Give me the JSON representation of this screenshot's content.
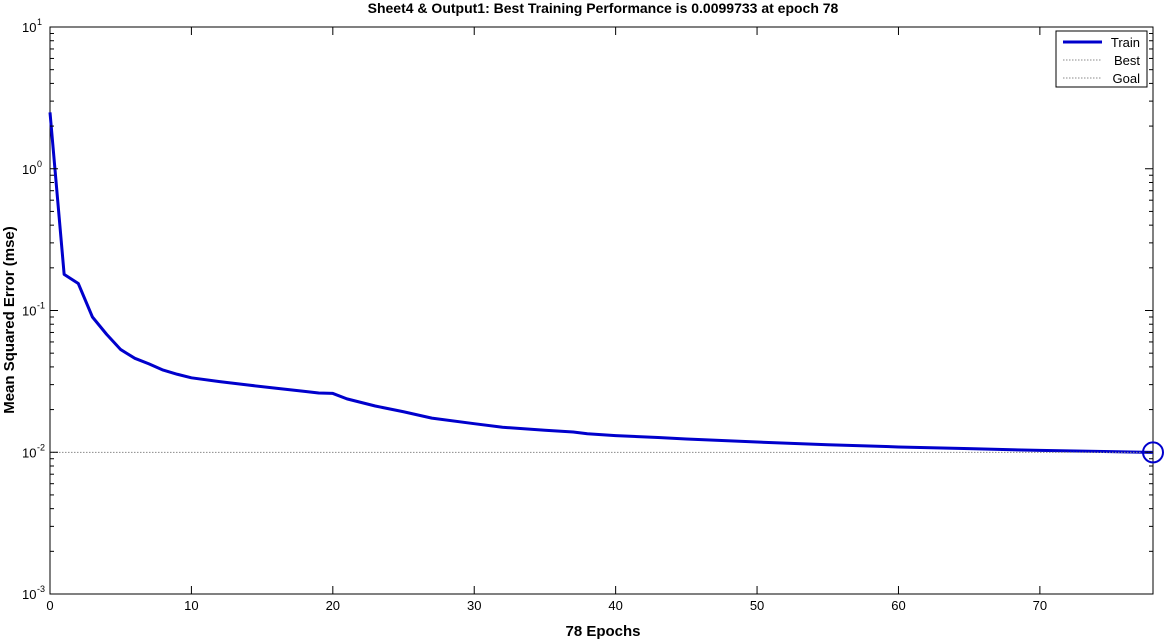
{
  "colors": {
    "train": "#0000cc",
    "best": "#8a8a8a",
    "goal": "#8a8a8a",
    "axis": "#000000"
  },
  "chart_data": {
    "type": "line",
    "title": "Sheet4 & Output1: Best Training Performance is 0.0099733 at epoch 78",
    "xlabel": "78 Epochs",
    "ylabel": "Mean Squared Error  (mse)",
    "xlim": [
      0,
      78
    ],
    "ylim": [
      0.001,
      10
    ],
    "y_scale": "log",
    "grid": false,
    "legend_position": "top-right",
    "x_ticks": [
      0,
      10,
      20,
      30,
      40,
      50,
      60,
      70
    ],
    "x_tick_labels": [
      "0",
      "10",
      "20",
      "30",
      "40",
      "50",
      "60",
      "70"
    ],
    "y_ticks": [
      {
        "value": 10,
        "base": "10",
        "exp": "1"
      },
      {
        "value": 1,
        "base": "10",
        "exp": "0"
      },
      {
        "value": 0.1,
        "base": "10",
        "exp": "-1"
      },
      {
        "value": 0.01,
        "base": "10",
        "exp": "-2"
      },
      {
        "value": 0.001,
        "base": "10",
        "exp": "-3"
      }
    ],
    "series": [
      {
        "name": "Train",
        "style": "line",
        "x": [
          0,
          1,
          2,
          3,
          4,
          5,
          6,
          7,
          8,
          9,
          10,
          12,
          14,
          16,
          18,
          19,
          20,
          21,
          23,
          25,
          27,
          30,
          32,
          35,
          37,
          38,
          40,
          43,
          45,
          50,
          55,
          60,
          65,
          70,
          75,
          78
        ],
        "y": [
          2.5,
          0.18,
          0.155,
          0.09,
          0.068,
          0.053,
          0.046,
          0.042,
          0.038,
          0.0355,
          0.0335,
          0.0315,
          0.0298,
          0.0283,
          0.0269,
          0.0262,
          0.026,
          0.0238,
          0.0212,
          0.0193,
          0.0174,
          0.0159,
          0.015,
          0.0143,
          0.0139,
          0.0135,
          0.0131,
          0.0127,
          0.0124,
          0.0118,
          0.0113,
          0.0109,
          0.0106,
          0.0103,
          0.0101,
          0.0099733
        ]
      },
      {
        "name": "Best",
        "style": "dotted",
        "x": [
          0,
          78
        ],
        "y": [
          0.0099733,
          0.0099733
        ],
        "marker": {
          "x": 78,
          "y": 0.0099733,
          "shape": "circle"
        }
      },
      {
        "name": "Goal",
        "style": "dotted",
        "x": [
          0,
          78
        ],
        "y": [
          0,
          0
        ]
      }
    ]
  }
}
